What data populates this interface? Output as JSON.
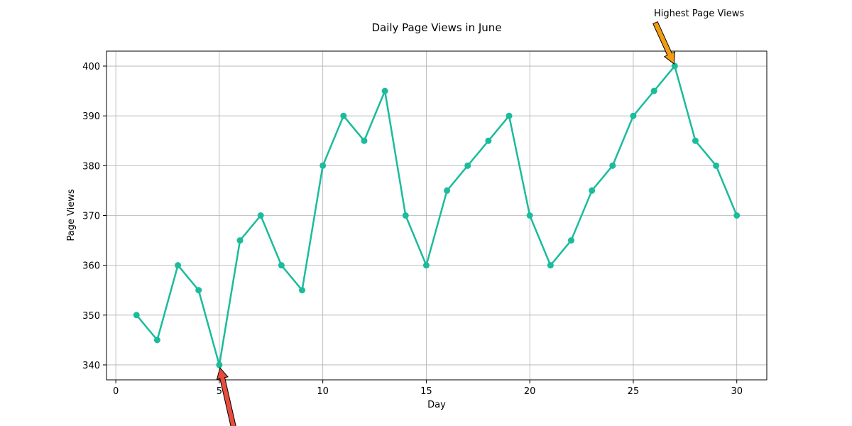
{
  "chart_data": {
    "type": "line",
    "title": "Daily Page Views in June",
    "xlabel": "Day",
    "ylabel": "Page Views",
    "xlim": [
      -0.45,
      31.45
    ],
    "ylim": [
      337,
      403
    ],
    "xticks": [
      0,
      5,
      10,
      15,
      20,
      25,
      30
    ],
    "yticks": [
      340,
      350,
      360,
      370,
      380,
      390,
      400
    ],
    "grid": true,
    "x": [
      1,
      2,
      3,
      4,
      5,
      6,
      7,
      8,
      9,
      10,
      11,
      12,
      13,
      14,
      15,
      16,
      17,
      18,
      19,
      20,
      21,
      22,
      23,
      24,
      25,
      26,
      27,
      28,
      29,
      30
    ],
    "series": [
      {
        "values": [
          350,
          345,
          360,
          355,
          340,
          365,
          370,
          360,
          355,
          380,
          390,
          385,
          395,
          370,
          360,
          375,
          380,
          385,
          390,
          370,
          360,
          365,
          375,
          380,
          390,
          395,
          400,
          385,
          380,
          370
        ],
        "color": "#1abc9c"
      }
    ],
    "annotations": [
      {
        "text": "Highest Page Views",
        "point": [
          27,
          400
        ],
        "arrow_color": "#f39c12"
      },
      {
        "text": "",
        "point": [
          5,
          340
        ],
        "arrow_color": "#e74c3c"
      }
    ]
  }
}
